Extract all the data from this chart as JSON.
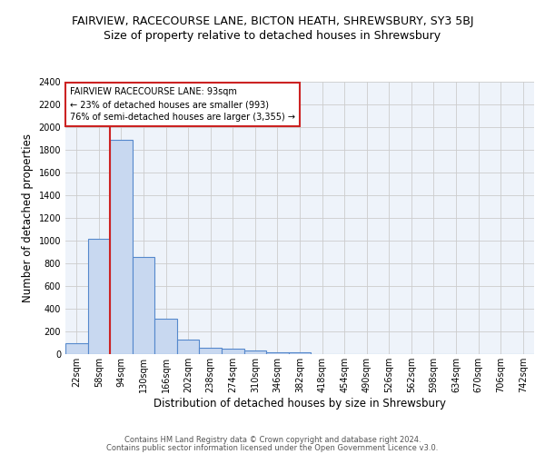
{
  "title": "FAIRVIEW, RACECOURSE LANE, BICTON HEATH, SHREWSBURY, SY3 5BJ",
  "subtitle": "Size of property relative to detached houses in Shrewsbury",
  "xlabel": "Distribution of detached houses by size in Shrewsbury",
  "ylabel": "Number of detached properties",
  "footer1": "Contains HM Land Registry data © Crown copyright and database right 2024.",
  "footer2": "Contains public sector information licensed under the Open Government Licence v3.0.",
  "bin_labels": [
    "22sqm",
    "58sqm",
    "94sqm",
    "130sqm",
    "166sqm",
    "202sqm",
    "238sqm",
    "274sqm",
    "310sqm",
    "346sqm",
    "382sqm",
    "418sqm",
    "454sqm",
    "490sqm",
    "526sqm",
    "562sqm",
    "598sqm",
    "634sqm",
    "670sqm",
    "706sqm",
    "742sqm"
  ],
  "bar_values": [
    100,
    1020,
    1890,
    860,
    315,
    130,
    58,
    50,
    30,
    18,
    20,
    0,
    0,
    0,
    0,
    0,
    0,
    0,
    0,
    0,
    0
  ],
  "bar_color": "#c8d8f0",
  "bar_edge_color": "#5588cc",
  "bar_edge_width": 0.8,
  "red_line_color": "#cc2222",
  "annotation_line1": "FAIRVIEW RACECOURSE LANE: 93sqm",
  "annotation_line2": "← 23% of detached houses are smaller (993)",
  "annotation_line3": "76% of semi-detached houses are larger (3,355) →",
  "annotation_box_color": "white",
  "annotation_box_edge": "#cc2222",
  "ylim": [
    0,
    2400
  ],
  "yticks": [
    0,
    200,
    400,
    600,
    800,
    1000,
    1200,
    1400,
    1600,
    1800,
    2000,
    2200,
    2400
  ],
  "grid_color": "#cccccc",
  "bg_color": "#eef3fa",
  "title_fontsize": 9,
  "subtitle_fontsize": 9,
  "axis_label_fontsize": 8.5,
  "tick_fontsize": 7,
  "annotation_fontsize": 7,
  "footer_fontsize": 6
}
